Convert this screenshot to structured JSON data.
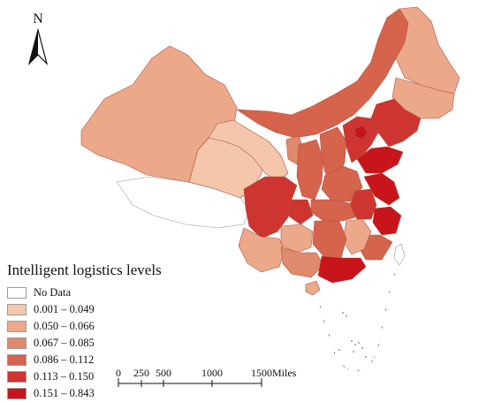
{
  "north_arrow": {
    "letter": "N"
  },
  "legend": {
    "title": "Intelligent logistics levels",
    "items": [
      {
        "label": "No Data",
        "color": "#ffffff"
      },
      {
        "label": "0.001 – 0.049",
        "color": "#f4c7ac"
      },
      {
        "label": "0.050 – 0.066",
        "color": "#eba98a"
      },
      {
        "label": "0.067 – 0.085",
        "color": "#e08a6d"
      },
      {
        "label": "0.086 – 0.112",
        "color": "#d6634c"
      },
      {
        "label": "0.113 – 0.150",
        "color": "#cf3530"
      },
      {
        "label": "0.151 – 0.843",
        "color": "#c8141b"
      }
    ]
  },
  "scale_bar": {
    "ticks": [
      "0",
      "250",
      "500",
      "1000",
      "1500"
    ],
    "unit": "Miles"
  }
}
